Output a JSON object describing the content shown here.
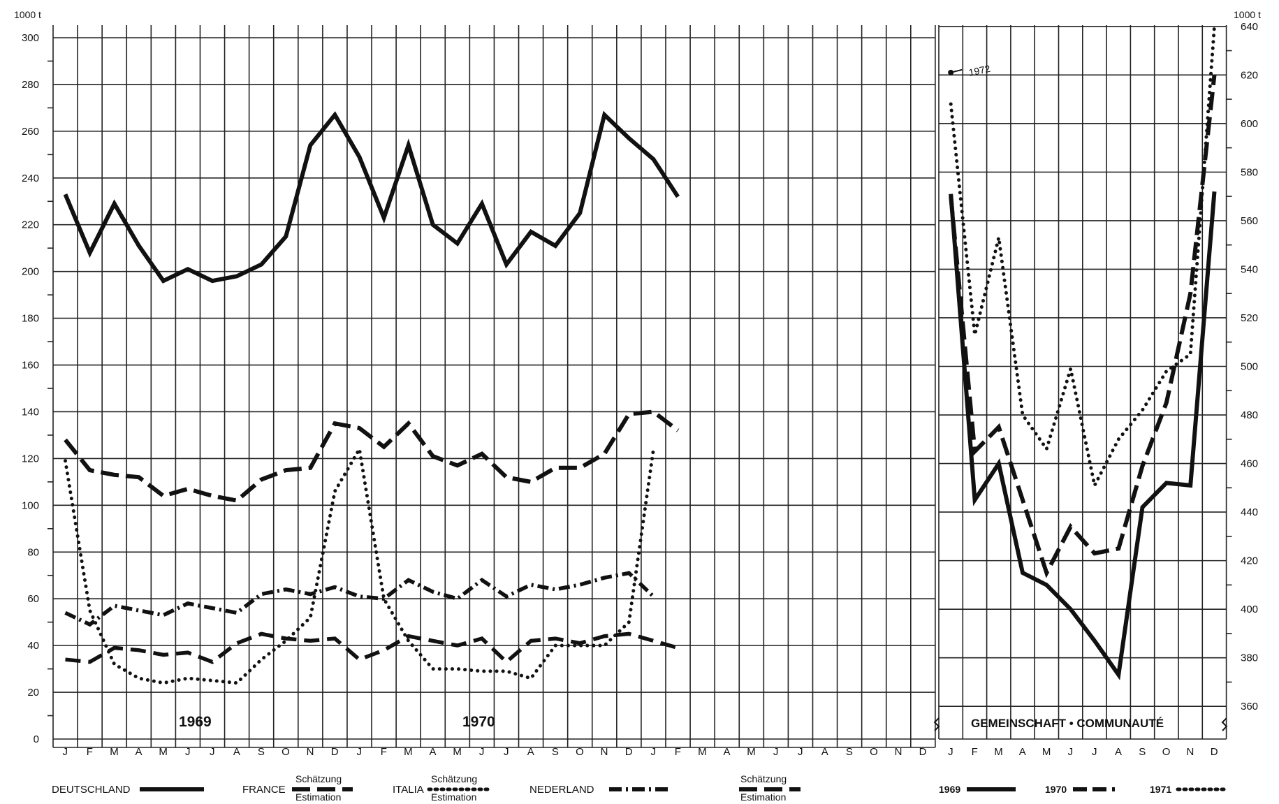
{
  "chart_data": [
    {
      "type": "line",
      "title": "",
      "xlabel": "",
      "ylabel": "1000 t",
      "ylim": [
        0,
        300
      ],
      "y_ticks": [
        "0",
        "20",
        "40",
        "60",
        "80",
        "100",
        "120",
        "140",
        "160",
        "180",
        "200",
        "220",
        "240",
        "260",
        "280",
        "300"
      ],
      "month_labels": [
        "J",
        "F",
        "M",
        "A",
        "M",
        "J",
        "J",
        "A",
        "S",
        "O",
        "N",
        "D",
        "J",
        "F",
        "M",
        "A",
        "M",
        "J",
        "J",
        "A",
        "S",
        "O",
        "N",
        "D",
        "J",
        "F",
        "M",
        "A",
        "M",
        "J",
        "J",
        "A",
        "S",
        "O",
        "N",
        "D"
      ],
      "year_labels": [
        "1969",
        "1970"
      ],
      "grid": true,
      "series": [
        {
          "name": "DEUTSCHLAND",
          "style": "solid",
          "values": [
            233,
            208,
            229,
            211,
            196,
            201,
            196,
            198,
            203,
            215,
            254,
            267,
            249,
            223,
            254,
            220,
            212,
            229,
            203,
            217,
            211,
            225,
            267,
            257,
            248,
            232
          ]
        },
        {
          "name": "FRANCE",
          "style": "dashed",
          "values": [
            128,
            115,
            113,
            112,
            104,
            107,
            104,
            102,
            111,
            115,
            116,
            135,
            133,
            125,
            135,
            121,
            117,
            122,
            112,
            110,
            116,
            116,
            122,
            139,
            140,
            132
          ]
        },
        {
          "name": "ITALIA",
          "style": "dotted",
          "values": [
            119,
            55,
            32,
            26,
            24,
            26,
            25,
            24,
            34,
            42,
            52,
            106,
            124,
            60,
            42,
            30,
            30,
            29,
            29,
            26,
            40,
            40,
            40,
            50,
            124
          ]
        },
        {
          "name": "NEDERLAND",
          "style": "dashdot",
          "values": [
            54,
            49,
            57,
            55,
            53,
            58,
            56,
            54,
            62,
            64,
            62,
            65,
            61,
            60,
            68,
            63,
            60,
            68,
            61,
            66,
            64,
            66,
            69,
            71,
            61
          ]
        },
        {
          "name": "",
          "style": "longdash",
          "values": [
            34,
            33,
            39,
            38,
            36,
            37,
            33,
            41,
            45,
            43,
            42,
            43,
            34,
            38,
            44,
            42,
            40,
            43,
            33,
            42,
            43,
            41,
            44,
            45,
            42,
            39
          ]
        }
      ]
    },
    {
      "type": "line",
      "title": "GEMEINSCHAFT • COMMUNAUTÉ",
      "xlabel": "",
      "ylabel": "1000 t",
      "ylim": [
        350,
        650
      ],
      "y_ticks": [
        "360",
        "380",
        "400",
        "420",
        "440",
        "460",
        "480",
        "500",
        "520",
        "540",
        "560",
        "580",
        "600",
        "620",
        "640"
      ],
      "month_labels": [
        "J",
        "F",
        "M",
        "A",
        "M",
        "J",
        "J",
        "A",
        "S",
        "O",
        "N",
        "D"
      ],
      "annotation": "1972",
      "annotation_value": 621,
      "grid": true,
      "series": [
        {
          "name": "1969",
          "style": "solid",
          "values": [
            571,
            445,
            460,
            415,
            410,
            400,
            387,
            373,
            442,
            452,
            451,
            572
          ]
        },
        {
          "name": "1970",
          "style": "dashed",
          "values": [
            570,
            465,
            475,
            445,
            415,
            434,
            423,
            425,
            459,
            485,
            530,
            620
          ]
        },
        {
          "name": "1971",
          "style": "dotted",
          "values": [
            608,
            513,
            553,
            480,
            466,
            499,
            451,
            470,
            482,
            498,
            505,
            640
          ]
        }
      ]
    }
  ],
  "legend": {
    "deutschland_label": "DEUTSCHLAND",
    "france_label": "FRANCE",
    "italia_label": "ITALIA",
    "nederland_label": "NEDERLAND",
    "schaetzung": "Schätzung",
    "estimation": "Estimation",
    "year_1969": "1969",
    "year_1970": "1970",
    "year_1971": "1971"
  }
}
